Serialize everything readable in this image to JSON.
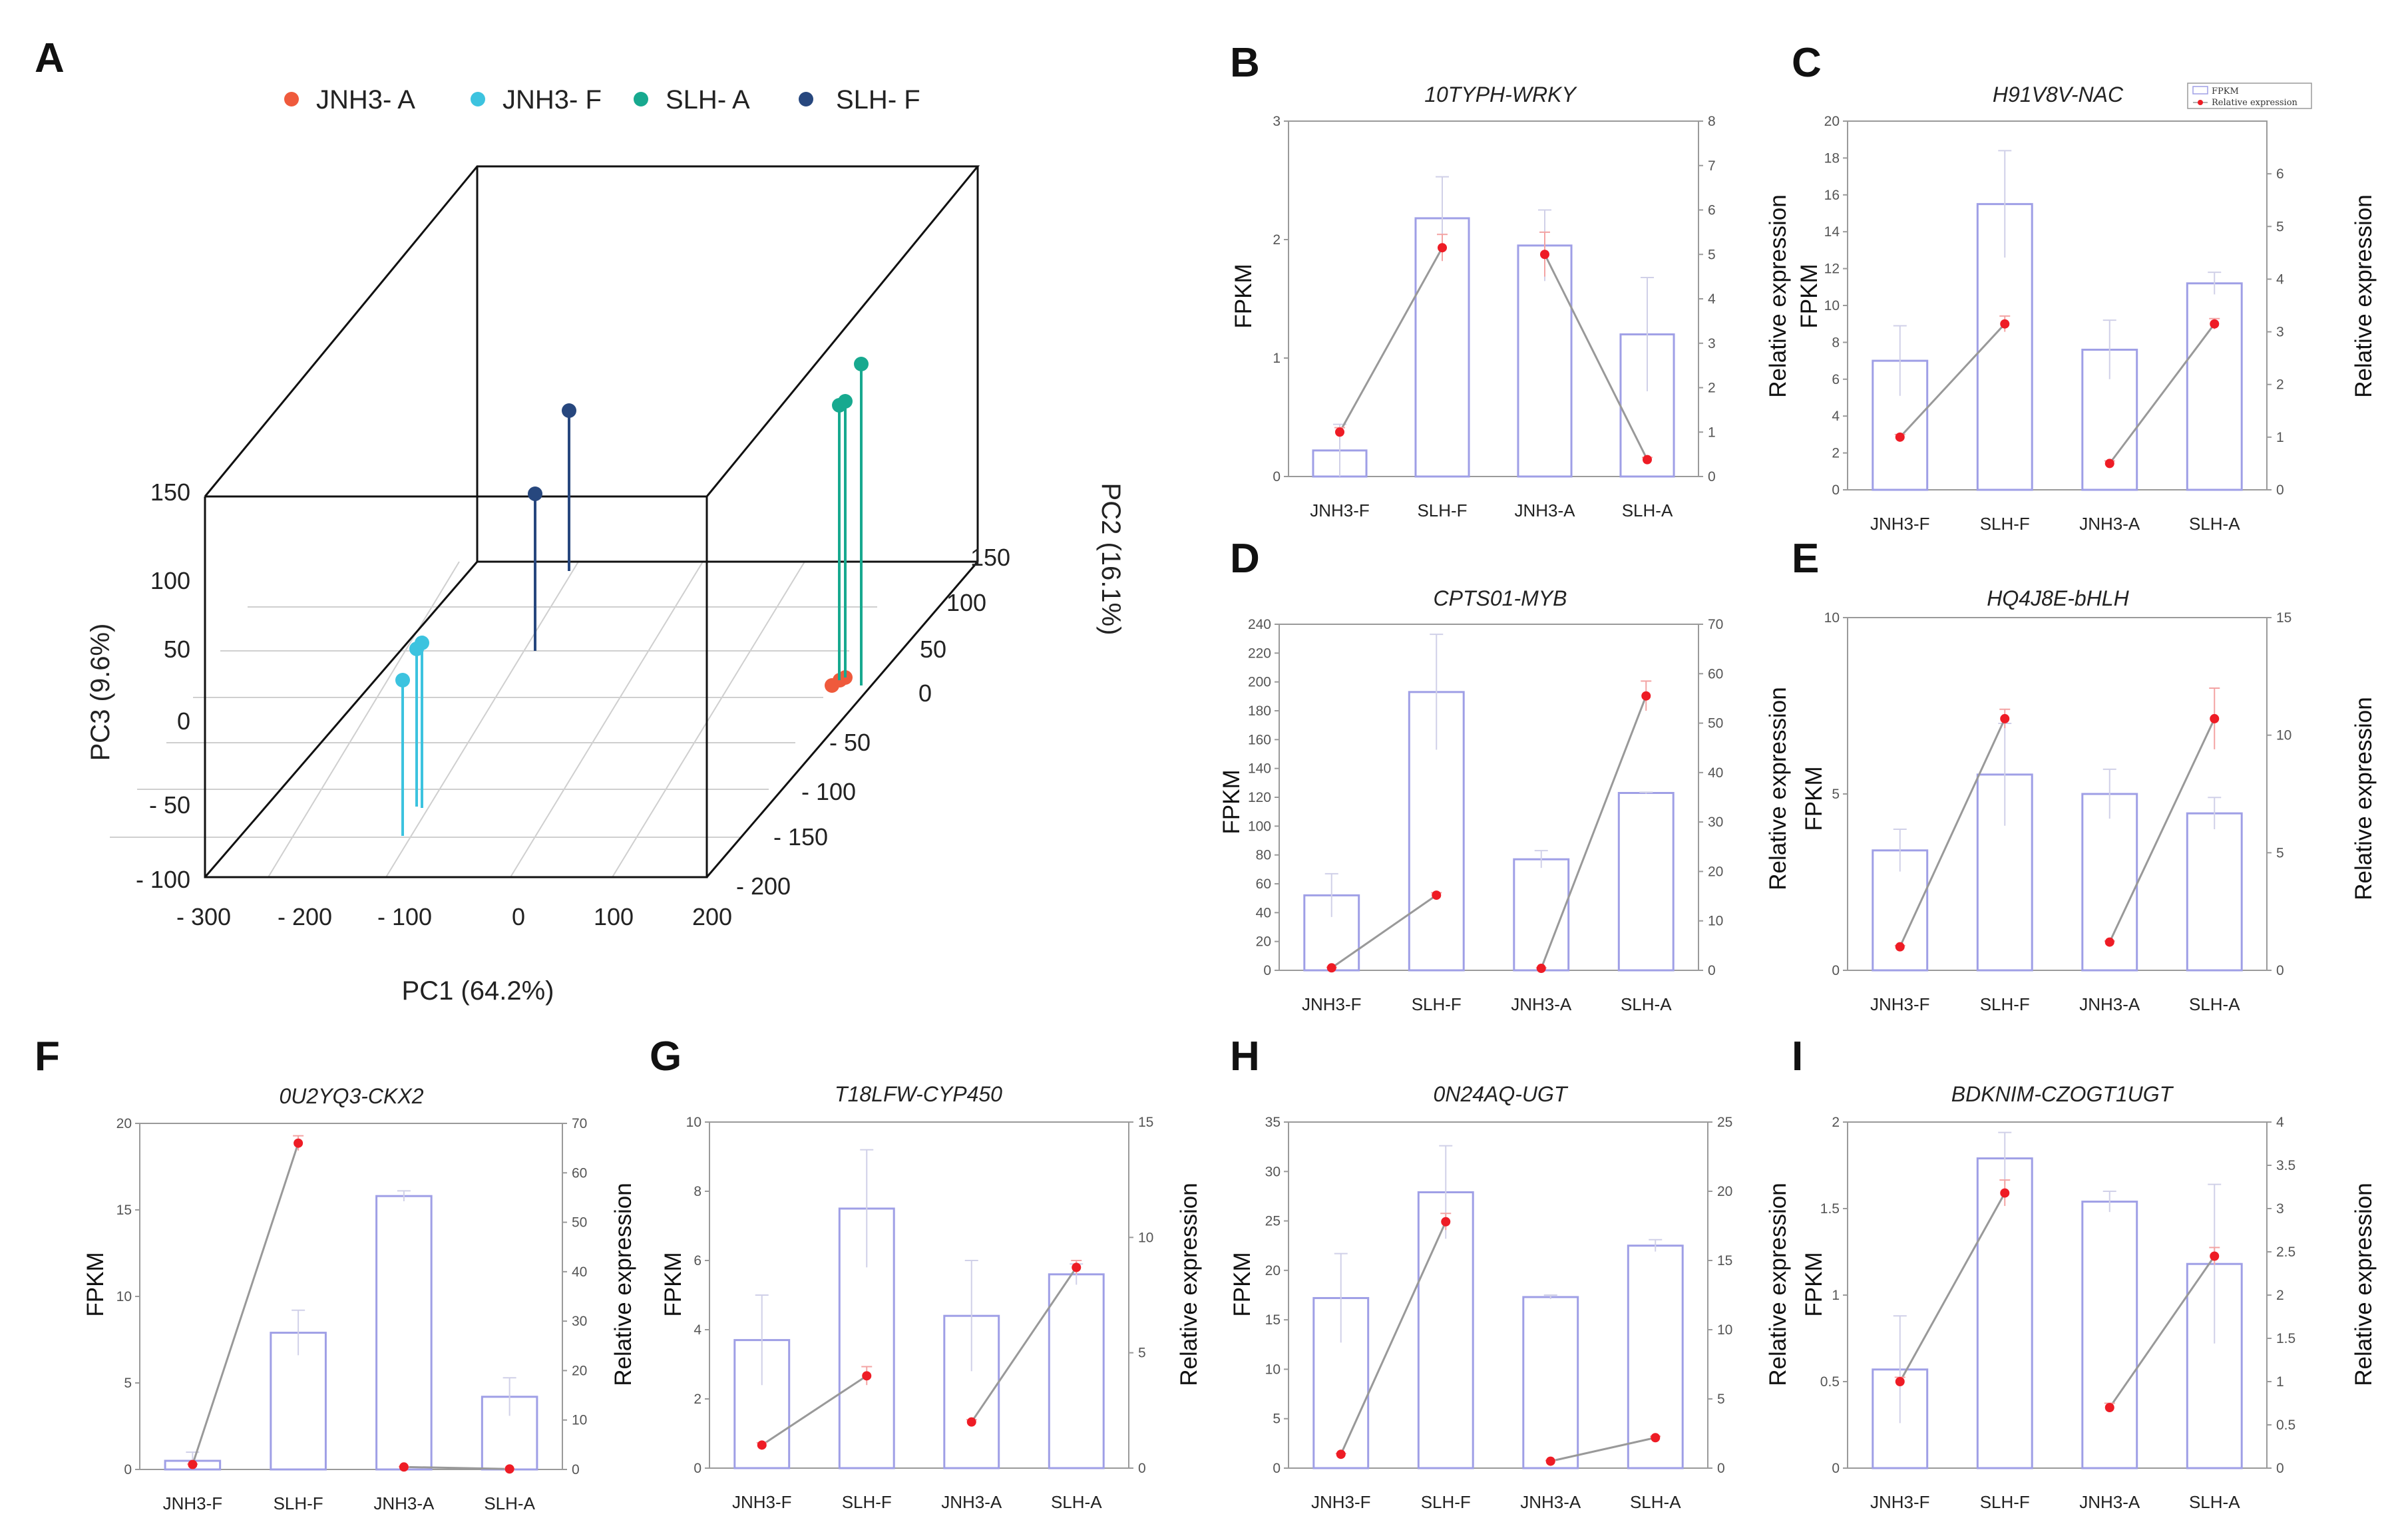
{
  "figure_type": "multi-panel figure",
  "colors": {
    "bar_stroke": "#9f9fe6",
    "line": "#999999",
    "point": "#ee1c25",
    "error": "#d0d0e8",
    "frame": "#9a9a9a",
    "JNH3-A": "#ef5a3c",
    "JNH3-F": "#3cc3df",
    "SLH-A": "#17a98f",
    "SLH-F": "#27477e"
  },
  "chart_data": [
    {
      "panel": "A",
      "type": "scatter",
      "subtype": "3d-pca",
      "legend": [
        "JNH3- A",
        "JNH3- F",
        "SLH- A",
        "SLH- F"
      ],
      "xlabel": "PC1 (64.2%)",
      "ylabel": "PC2 (16.1%)",
      "zlabel": "PC3 (9.6%)",
      "x_ticks": [
        "- 300",
        "- 200",
        "- 100",
        "0",
        "100",
        "200"
      ],
      "y_ticks": [
        "- 200",
        "- 150",
        "- 100",
        "- 50",
        "0",
        "50",
        "100",
        "150"
      ],
      "z_ticks": [
        "- 100",
        "- 50",
        "0",
        "50",
        "100",
        "150"
      ],
      "xlim": [
        -300,
        200
      ],
      "ylim": [
        -200,
        150
      ],
      "zlim": [
        -100,
        150
      ],
      "series": [
        {
          "name": "JNH3- A",
          "points": [
            [
              150,
              -20,
              0
            ],
            [
              160,
              -15,
              5
            ],
            [
              155,
              -18,
              2
            ]
          ]
        },
        {
          "name": "JNH3- F",
          "points": [
            [
              -100,
              -150,
              40
            ],
            [
              -85,
              -160,
              60
            ],
            [
              -88,
              -150,
              55
            ]
          ]
        },
        {
          "name": "SLH- A",
          "points": [
            [
              150,
              60,
              80
            ],
            [
              160,
              55,
              75
            ],
            [
              170,
              100,
              70
            ]
          ]
        },
        {
          "name": "SLH- F",
          "points": [
            [
              -20,
              60,
              120
            ],
            [
              0,
              130,
              70
            ]
          ]
        }
      ]
    },
    {
      "panel": "B",
      "type": "bar",
      "title": "10TYPH-WRKY",
      "categories": [
        "JNH3-F",
        "SLH-F",
        "JNH3-A",
        "SLH-A"
      ],
      "ylabel": "FPKM",
      "y2label": "Relative expression",
      "ylim": [
        0,
        3
      ],
      "yticks": [
        0,
        1,
        2,
        3
      ],
      "y2lim": [
        0,
        8
      ],
      "y2ticks": [
        0,
        1,
        2,
        3,
        4,
        5,
        6,
        7,
        8
      ],
      "fpkm": [
        0.22,
        2.18,
        1.95,
        1.2
      ],
      "fpkm_err": [
        0.22,
        0.35,
        0.3,
        0.48
      ],
      "relative_expression": [
        1.0,
        5.15,
        5.0,
        0.38
      ],
      "rel_err": [
        0.1,
        0.3,
        0.5,
        0.05
      ],
      "connected_pairs": [
        [
          0,
          1
        ],
        [
          2,
          3
        ]
      ]
    },
    {
      "panel": "C",
      "type": "bar",
      "title": "H91V8V-NAC",
      "categories": [
        "JNH3-F",
        "SLH-F",
        "JNH3-A",
        "SLH-A"
      ],
      "ylabel": "FPKM",
      "y2label": "Relative expression",
      "legend": [
        "FPKM",
        "Relative expression"
      ],
      "ylim": [
        0,
        20
      ],
      "yticks": [
        0,
        2,
        4,
        6,
        8,
        10,
        12,
        14,
        16,
        18,
        20
      ],
      "y2lim": [
        0,
        7
      ],
      "y2ticks": [
        0,
        1,
        2,
        3,
        4,
        5,
        6
      ],
      "fpkm": [
        7.0,
        15.5,
        7.6,
        11.2
      ],
      "fpkm_err": [
        1.9,
        2.9,
        1.6,
        0.6
      ],
      "relative_expression": [
        1.0,
        3.15,
        0.5,
        3.15
      ],
      "rel_err": [
        0.05,
        0.15,
        0.05,
        0.1
      ],
      "connected_pairs": [
        [
          0,
          1
        ],
        [
          2,
          3
        ]
      ]
    },
    {
      "panel": "D",
      "type": "bar",
      "title": "CPTS01-MYB",
      "categories": [
        "JNH3-F",
        "SLH-F",
        "JNH3-A",
        "SLH-A"
      ],
      "ylabel": "FPKM",
      "y2label": "Relative expression",
      "ylim": [
        0,
        240
      ],
      "yticks": [
        0,
        20,
        40,
        60,
        80,
        100,
        120,
        140,
        160,
        180,
        200,
        220,
        240
      ],
      "y2lim": [
        0,
        70
      ],
      "y2ticks": [
        0,
        10,
        20,
        30,
        40,
        50,
        60,
        70
      ],
      "fpkm": [
        52,
        193,
        77,
        123
      ],
      "fpkm_err": [
        15,
        40,
        6,
        0.5
      ],
      "relative_expression": [
        0.5,
        15.2,
        0.4,
        55.5
      ],
      "rel_err": [
        0.1,
        0.5,
        0.1,
        3
      ],
      "connected_pairs": [
        [
          0,
          1
        ],
        [
          2,
          3
        ]
      ]
    },
    {
      "panel": "E",
      "type": "bar",
      "title": "HQ4J8E-bHLH",
      "categories": [
        "JNH3-F",
        "SLH-F",
        "JNH3-A",
        "SLH-A"
      ],
      "ylabel": "FPKM",
      "y2label": "Relative expression",
      "ylim": [
        0,
        10
      ],
      "yticks": [
        0,
        5,
        10
      ],
      "y2lim": [
        0,
        15
      ],
      "y2ticks": [
        0,
        5,
        10,
        15
      ],
      "fpkm": [
        3.4,
        5.55,
        5.0,
        4.45
      ],
      "fpkm_err": [
        0.6,
        1.45,
        0.7,
        0.45
      ],
      "relative_expression": [
        1.0,
        10.7,
        1.2,
        10.7
      ],
      "rel_err": [
        0.05,
        0.4,
        0.05,
        1.3
      ],
      "connected_pairs": [
        [
          0,
          1
        ],
        [
          2,
          3
        ]
      ]
    },
    {
      "panel": "F",
      "type": "bar",
      "title": "0U2YQ3-CKX2",
      "categories": [
        "JNH3-F",
        "SLH-F",
        "JNH3-A",
        "SLH-A"
      ],
      "ylabel": "FPKM",
      "y2label": "Relative expression",
      "ylim": [
        0,
        20
      ],
      "yticks": [
        0,
        5,
        10,
        15,
        20
      ],
      "y2lim": [
        0,
        70
      ],
      "y2ticks": [
        0,
        10,
        20,
        30,
        40,
        50,
        60,
        70
      ],
      "fpkm": [
        0.5,
        7.9,
        15.8,
        4.2
      ],
      "fpkm_err": [
        0.5,
        1.3,
        0.3,
        1.1
      ],
      "relative_expression": [
        1.0,
        66.0,
        0.5,
        0.1
      ],
      "rel_err": [
        0.1,
        1.5,
        0.05,
        0.05
      ],
      "connected_pairs": [
        [
          0,
          1
        ],
        [
          2,
          3
        ]
      ]
    },
    {
      "panel": "G",
      "type": "bar",
      "title": "T18LFW-CYP450",
      "categories": [
        "JNH3-F",
        "SLH-F",
        "JNH3-A",
        "SLH-A"
      ],
      "ylabel": "FPKM",
      "y2label": "Relative expression",
      "ylim": [
        0,
        10
      ],
      "yticks": [
        0,
        2,
        4,
        6,
        8,
        10
      ],
      "y2lim": [
        0,
        15
      ],
      "y2ticks": [
        0,
        5,
        10,
        15
      ],
      "fpkm": [
        3.7,
        7.5,
        4.4,
        5.6
      ],
      "fpkm_err": [
        1.3,
        1.7,
        1.6,
        0.3
      ],
      "relative_expression": [
        1.0,
        4.0,
        2.0,
        8.7
      ],
      "rel_err": [
        0.1,
        0.4,
        0.1,
        0.3
      ],
      "connected_pairs": [
        [
          0,
          1
        ],
        [
          2,
          3
        ]
      ]
    },
    {
      "panel": "H",
      "type": "bar",
      "title": "0N24AQ-UGT",
      "categories": [
        "JNH3-F",
        "SLH-F",
        "JNH3-A",
        "SLH-A"
      ],
      "ylabel": "FPKM",
      "y2label": "Relative expression",
      "ylim": [
        0,
        35
      ],
      "yticks": [
        0,
        5,
        10,
        15,
        20,
        25,
        30,
        35
      ],
      "y2lim": [
        0,
        25
      ],
      "y2ticks": [
        0,
        5,
        10,
        15,
        20,
        25
      ],
      "fpkm": [
        17.2,
        27.9,
        17.3,
        22.5
      ],
      "fpkm_err": [
        4.5,
        4.7,
        0.2,
        0.6
      ],
      "relative_expression": [
        1.0,
        17.8,
        0.5,
        2.2
      ],
      "rel_err": [
        0.05,
        0.6,
        0.05,
        0.1
      ],
      "connected_pairs": [
        [
          0,
          1
        ],
        [
          2,
          3
        ]
      ]
    },
    {
      "panel": "I",
      "type": "bar",
      "title": "BDKNIM-CZOGT1UGT",
      "categories": [
        "JNH3-F",
        "SLH-F",
        "JNH3-A",
        "SLH-A"
      ],
      "ylabel": "FPKM",
      "y2label": "Relative expression",
      "ylim": [
        0,
        2.0
      ],
      "yticks": [
        0.0,
        0.5,
        1.0,
        1.5,
        2.0
      ],
      "y2lim": [
        0,
        4.0
      ],
      "y2ticks": [
        0.0,
        0.5,
        1.0,
        1.5,
        2.0,
        2.5,
        3.0,
        3.5,
        4.0
      ],
      "fpkm": [
        0.57,
        1.79,
        1.54,
        1.18
      ],
      "fpkm_err": [
        0.31,
        0.15,
        0.06,
        0.46
      ],
      "relative_expression": [
        1.0,
        3.18,
        0.7,
        2.45
      ],
      "rel_err": [
        0.05,
        0.15,
        0.05,
        0.1
      ],
      "connected_pairs": [
        [
          0,
          1
        ],
        [
          2,
          3
        ]
      ]
    }
  ]
}
